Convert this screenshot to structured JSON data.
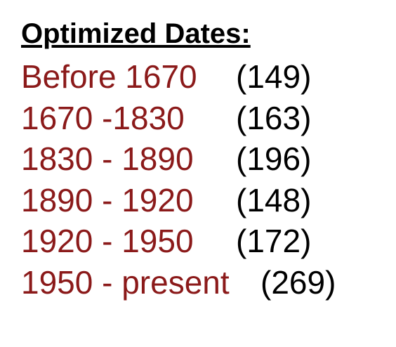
{
  "title": "Optimized Dates:",
  "colors": {
    "range_text": "#8b1a1a",
    "count_text": "#000000",
    "background": "#ffffff"
  },
  "rows": [
    {
      "range": "Before 1670",
      "count": "(149)"
    },
    {
      "range": "1670 -1830",
      "count": "(163)"
    },
    {
      "range": "1830 - 1890",
      "count": "(196)"
    },
    {
      "range": "1890 - 1920",
      "count": "(148)"
    },
    {
      "range": "1920 - 1950",
      "count": "(172)"
    },
    {
      "range": "1950 - present",
      "count": "(269)"
    }
  ]
}
